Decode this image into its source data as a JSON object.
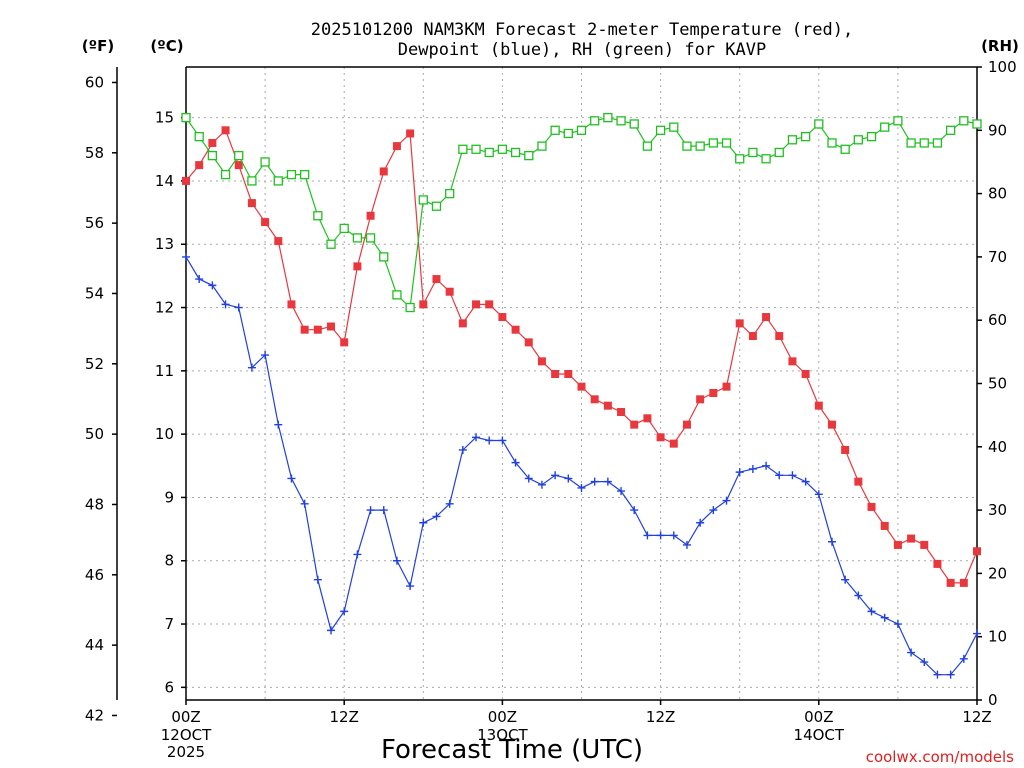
{
  "chart_data": {
    "type": "line",
    "title_line1": "2025101200 NAM3KM Forecast 2-meter Temperature (red),",
    "title_line2": "Dewpoint (blue), RH (green) for KAVP",
    "xlabel": "Forecast Time (UTC)",
    "credit": "coolwx.com/models",
    "units": {
      "f": "(ºF)",
      "c": "(ºC)",
      "rh": "(RH)"
    },
    "x_range": [
      0,
      60
    ],
    "celsius_range": [
      5.8,
      15.8
    ],
    "rh_range": [
      0,
      100
    ],
    "celsius_ticks": [
      6,
      7,
      8,
      9,
      10,
      11,
      12,
      13,
      14,
      15
    ],
    "fahrenheit_ticks": [
      42,
      44,
      46,
      48,
      50,
      52,
      54,
      56,
      58,
      60
    ],
    "rh_ticks": [
      0,
      10,
      20,
      30,
      40,
      50,
      60,
      70,
      80,
      90,
      100
    ],
    "x_ticks": [
      {
        "hour": 0,
        "label": "00Z",
        "sub1": "12OCT",
        "sub2": "2025"
      },
      {
        "hour": 12,
        "label": "12Z",
        "sub1": "",
        "sub2": ""
      },
      {
        "hour": 24,
        "label": "00Z",
        "sub1": "13OCT",
        "sub2": ""
      },
      {
        "hour": 36,
        "label": "12Z",
        "sub1": "",
        "sub2": ""
      },
      {
        "hour": 48,
        "label": "00Z",
        "sub1": "14OCT",
        "sub2": ""
      },
      {
        "hour": 60,
        "label": "12Z",
        "sub1": "",
        "sub2": ""
      }
    ],
    "series": [
      {
        "name": "2-meter Temperature",
        "unit": "C",
        "color": "#e8383d",
        "marker": "filled-square",
        "values": [
          14.0,
          14.25,
          14.6,
          14.8,
          14.25,
          13.65,
          13.35,
          13.05,
          12.05,
          11.65,
          11.65,
          11.7,
          11.45,
          12.65,
          13.45,
          14.15,
          14.55,
          14.75,
          12.05,
          12.45,
          12.25,
          11.75,
          12.05,
          12.05,
          11.85,
          11.65,
          11.45,
          11.15,
          10.95,
          10.95,
          10.75,
          10.55,
          10.45,
          10.35,
          10.15,
          10.25,
          9.95,
          9.85,
          10.15,
          10.55,
          10.65,
          10.75,
          11.75,
          11.55,
          11.85,
          11.55,
          11.15,
          10.95,
          10.45,
          10.15,
          9.75,
          9.25,
          8.85,
          8.55,
          8.25,
          8.35,
          8.25,
          7.95,
          7.65,
          7.65,
          8.15
        ]
      },
      {
        "name": "Dewpoint",
        "unit": "C",
        "color": "#2040e0",
        "marker": "plus",
        "values": [
          12.8,
          12.45,
          12.35,
          12.05,
          12.0,
          11.05,
          11.25,
          10.15,
          9.3,
          8.9,
          7.7,
          6.9,
          7.2,
          8.1,
          8.8,
          8.8,
          8.0,
          7.6,
          8.6,
          8.7,
          8.9,
          9.75,
          9.95,
          9.9,
          9.9,
          9.55,
          9.3,
          9.2,
          9.35,
          9.3,
          9.15,
          9.25,
          9.25,
          9.1,
          8.8,
          8.4,
          8.4,
          8.4,
          8.25,
          8.6,
          8.8,
          8.95,
          9.4,
          9.45,
          9.5,
          9.35,
          9.35,
          9.25,
          9.05,
          8.3,
          7.7,
          7.45,
          7.2,
          7.1,
          7.0,
          6.55,
          6.4,
          6.2,
          6.2,
          6.45,
          6.85
        ]
      },
      {
        "name": "RH",
        "unit": "%",
        "color": "#20c020",
        "marker": "open-square",
        "values": [
          92,
          89,
          86,
          83,
          86,
          82,
          85,
          82,
          83,
          83,
          76.5,
          72,
          74.5,
          73,
          73,
          70,
          64,
          62,
          79,
          78,
          80,
          87,
          87,
          86.5,
          87,
          86.5,
          86,
          87.5,
          90,
          89.5,
          90,
          91.5,
          92,
          91.5,
          91,
          87.5,
          90,
          90.5,
          87.5,
          87.5,
          88,
          88,
          85.5,
          86.5,
          85.5,
          86.5,
          88.5,
          89,
          91,
          88,
          87,
          88.5,
          89,
          90.5,
          91.5,
          88,
          88,
          88,
          90,
          91.5,
          91
        ]
      }
    ]
  }
}
